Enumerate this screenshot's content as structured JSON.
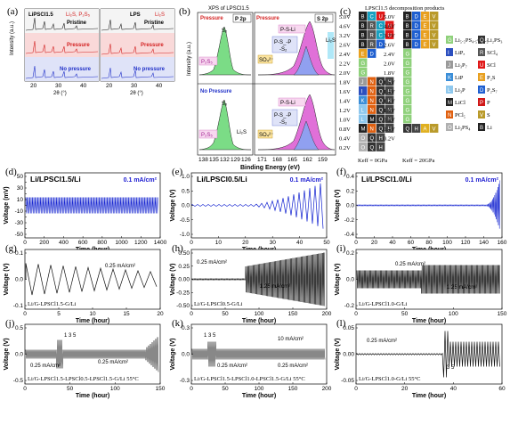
{
  "panel_a": {
    "letter": "(a)",
    "left_title": "LiPSCl1.5",
    "left_legend": "Li₂S, P₂S₅",
    "right_title": "LPS",
    "right_legend": "Li₂S",
    "row_labels": [
      "Pristine",
      "Pressure",
      "No pressure"
    ],
    "ylabel": "Intensity (a.u.)",
    "xlabel": "2θ (°)",
    "ticks_left": [
      "20",
      "30",
      "40"
    ],
    "ticks_right": [
      "20",
      "30",
      "40"
    ]
  },
  "panel_b": {
    "letter": "(b)",
    "title": "XPS of LPSCl1.5",
    "p_header": "P 2p",
    "s_header": "S 2p",
    "pressure_label": "Pressure",
    "no_pressure_label": "No Pressure",
    "species": [
      "P₂S₅",
      "Sₓ",
      "P-S-Li",
      "P-S_-P",
      "-S₂",
      "SO₄²⁻",
      "Li₂S",
      "Li₂S"
    ],
    "ylabel": "Intensity (a.u.)",
    "xlabel": "Binding Energy (eV)",
    "p_ticks": [
      "138",
      "135",
      "132",
      "129",
      "126"
    ],
    "s_ticks": [
      "171",
      "168",
      "165",
      "162",
      "159"
    ]
  },
  "panel_c": {
    "letter": "(c)",
    "title": "LPSCl1.5 decomposition products",
    "voltage_ticks": [
      "5.0V",
      "4.6V",
      "3.2V",
      "2.6V",
      "2.4V",
      "2.2V",
      "2.0V",
      "1.8V",
      "1.6V",
      "1.4V",
      "1.2V",
      "1.0V",
      "0.8V",
      "0.4V",
      "0.2V"
    ],
    "voltage_ticks_right": [
      "5.0V",
      "4.6V",
      "3.2V",
      "2.6V",
      "2.4V",
      "2.0V",
      "1.8V",
      "1.6V",
      "1.4V",
      "1.2V",
      "1.0V",
      "0.8V",
      "0.4V",
      "0.2V"
    ],
    "keff_left": "Keff = 0GPa",
    "keff_right": "Keff = 20GPa",
    "legend": [
      {
        "code": "G",
        "name": "Li₅.₅PS₄.₅Cl₁.₅",
        "color": "#8fd17b"
      },
      {
        "code": "I",
        "name": "LiPₓ",
        "color": "#2b4fbf"
      },
      {
        "code": "J",
        "name": "Li₃P₇",
        "color": "#9a9a9a"
      },
      {
        "code": "K",
        "name": "LiP",
        "color": "#3b8ed8"
      },
      {
        "code": "L",
        "name": "Li₃P",
        "color": "#8ec8ee"
      },
      {
        "code": "M",
        "name": "LiCl",
        "color": "#222222"
      },
      {
        "code": "N",
        "name": "PCl₅",
        "color": "#e06010"
      },
      {
        "code": "O",
        "name": "Li₃PS₄",
        "color": "#b0b0b0"
      },
      {
        "code": "Q",
        "name": "Li₂PS₃",
        "color": "#333333"
      },
      {
        "code": "R",
        "name": "SCl₄",
        "color": "#555555"
      },
      {
        "code": "U",
        "name": "SCl",
        "color": "#e01818"
      },
      {
        "code": "E",
        "name": "P₂S",
        "color": "#e8a020"
      },
      {
        "code": "D",
        "name": "P₂S₇",
        "color": "#1f5fd0"
      },
      {
        "code": "P",
        "name": "P",
        "color": "#d01818"
      },
      {
        "code": "V",
        "name": "S",
        "color": "#b99a2a"
      },
      {
        "code": "B",
        "name": "Li",
        "color": "#222222"
      }
    ]
  },
  "panel_d": {
    "letter": "(d)",
    "title": "Li/LPSCl1.5/Li",
    "current": "0.1 mA/cm²",
    "ylabel": "Voltage (mV)",
    "xlabel": "Time (hour)",
    "yticks": [
      "50",
      "40",
      "30",
      "20",
      "10",
      "0",
      "-10",
      "-20",
      "-30",
      "-40",
      "-50"
    ],
    "xticks": [
      "0",
      "200",
      "400",
      "600",
      "800",
      "1000",
      "1200",
      "1400"
    ]
  },
  "panel_e": {
    "letter": "(e)",
    "title": "Li/LPSCl0.5/Li",
    "current": "0.1 mA/cm²",
    "ylabel": "Voltage (V)",
    "xlabel": "Time (hour)",
    "yticks": [
      "1.0",
      "0.5",
      "0.0",
      "-0.5",
      "-1.0"
    ],
    "xticks": [
      "0",
      "10",
      "20",
      "30",
      "40",
      "50"
    ]
  },
  "panel_f": {
    "letter": "(f)",
    "title": "Li/LPSCl1.0/Li",
    "current": "0.1 mA/cm²",
    "ylabel": "Voltage (V)",
    "xlabel": "Time (hour)",
    "yticks": [
      "0.4",
      "0.2",
      "0.0",
      "-0.2",
      "-0.4"
    ],
    "xticks": [
      "0",
      "20",
      "40",
      "60",
      "80",
      "100",
      "120",
      "140",
      "160"
    ]
  },
  "panel_g": {
    "letter": "(g)",
    "current": "0.25 mA/cm²",
    "cell": "Li/G-LPSCl1.5-G/Li",
    "ylabel": "Voltage (V)",
    "xlabel": "Time (hour)",
    "yticks": [
      "0.1",
      "0.0",
      "-0.1"
    ],
    "xticks": [
      "0",
      "5",
      "10",
      "15",
      "20"
    ]
  },
  "panel_h": {
    "letter": "(h)",
    "current1": "0.25 mA/cm²",
    "current2": "1.25 mA/cm²",
    "cell": "Li/G-LPSCl0.5-G/Li",
    "ylabel": "Voltage (V)",
    "xlabel": "Time (hour)",
    "yticks": [
      "0.50",
      "0.25",
      "0.00",
      "-0.25",
      "-0.50"
    ],
    "xticks": [
      "0",
      "50",
      "100",
      "150",
      "200"
    ]
  },
  "panel_i": {
    "letter": "(i)",
    "current1": "0.25 mA/cm²",
    "current2": "1.25 mA/cm²",
    "cell": "Li/G-LPSCl1.0-G/Li",
    "ylabel": "Voltage (V)",
    "xlabel": "Time (hour)",
    "yticks": [
      "0.2",
      "0.0",
      "-0.2"
    ],
    "xticks": [
      "0",
      "50",
      "100",
      "150"
    ]
  },
  "panel_j": {
    "letter": "(j)",
    "current1": "0.25 mA/cm²",
    "current2": "0.25 mA/cm²",
    "steps": "1 3 5",
    "cell": "Li/G-LPSCl1.5-LPSCl0.5-LPSCl1.5-G/Li  55°C",
    "ylabel": "Voltage (V)",
    "xlabel": "Time (hour)",
    "yticks": [
      "0.5",
      "0.0",
      "-0.5"
    ],
    "xticks": [
      "0",
      "50",
      "100",
      "150"
    ]
  },
  "panel_k": {
    "letter": "(k)",
    "current1": "0.25 mA/cm²",
    "current2": "0.25 mA/cm²",
    "current3": "10 mA/cm²",
    "steps": "1 3 5",
    "cell": "Li/G-LPSCl1.5-LPSCl1.0-LPSCl1.5-G/Li  55°C",
    "ylabel": "Voltage (V)",
    "xlabel": "Time (hour)",
    "yticks": [
      "0.3",
      "0.0",
      "-0.3"
    ],
    "xticks": [
      "0",
      "50",
      "100",
      "150",
      "200"
    ]
  },
  "panel_l": {
    "letter": "(l)",
    "current": "0.25 mA/cm²",
    "steps": "3 5",
    "cell": "Li/G-LPSCl1.0-G/Li  55°C",
    "ylabel": "Voltage (V)",
    "xlabel": "Time (hour)",
    "yticks": [
      "0.05",
      "0.00",
      "-0.05"
    ],
    "xticks": [
      "0",
      "20",
      "40",
      "60"
    ]
  }
}
